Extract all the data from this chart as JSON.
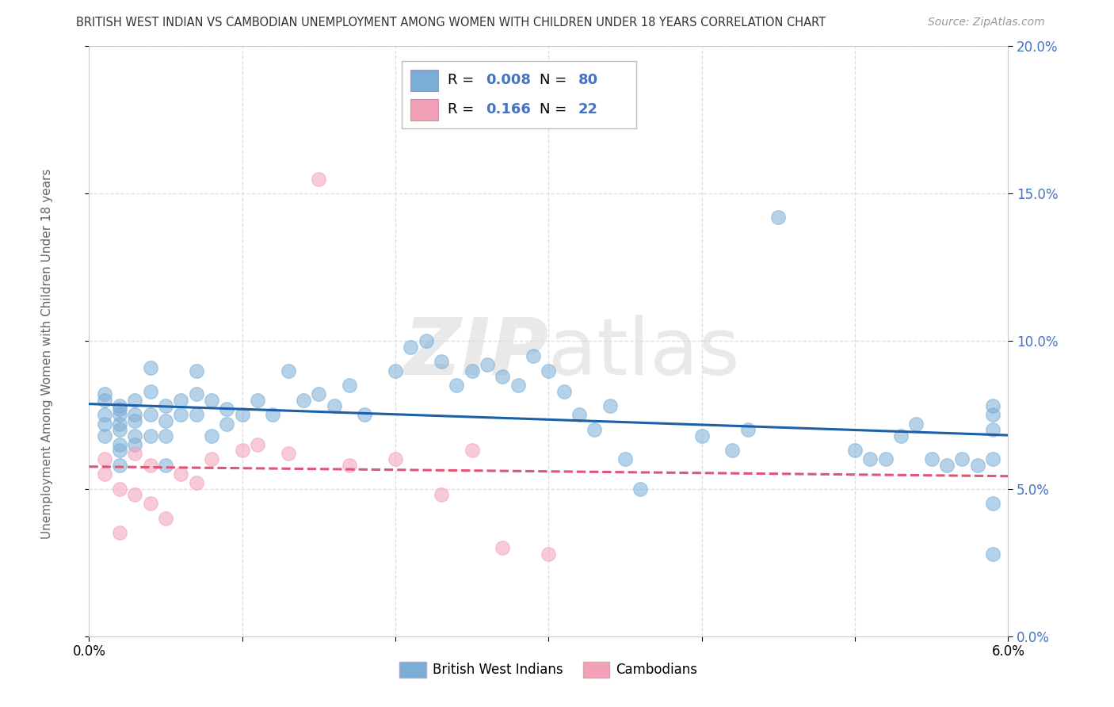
{
  "title": "BRITISH WEST INDIAN VS CAMBODIAN UNEMPLOYMENT AMONG WOMEN WITH CHILDREN UNDER 18 YEARS CORRELATION CHART",
  "source": "Source: ZipAtlas.com",
  "ylabel": "Unemployment Among Women with Children Under 18 years",
  "legend_label1": "British West Indians",
  "legend_label2": "Cambodians",
  "R1_val": "0.008",
  "N1_val": "80",
  "R2_val": "0.166",
  "N2_val": "22",
  "blue_color": "#7aaed6",
  "pink_color": "#f4a0b8",
  "trend_blue_color": "#1a5fa8",
  "trend_pink_color": "#e05575",
  "text_color_blue": "#4472c4",
  "label_color": "#666666",
  "grid_color": "#dddddd",
  "watermark_color": "#d8d8d8",
  "bg_color": "#ffffff",
  "xlim": [
    0.0,
    0.06
  ],
  "ylim": [
    0.0,
    0.2
  ],
  "xticks_labeled": [
    0.0,
    0.06
  ],
  "xticks_minor": [
    0.01,
    0.02,
    0.03,
    0.04,
    0.05
  ],
  "yticks": [
    0.0,
    0.05,
    0.1,
    0.15,
    0.2
  ],
  "blue_x": [
    0.001,
    0.001,
    0.001,
    0.001,
    0.001,
    0.002,
    0.002,
    0.002,
    0.002,
    0.002,
    0.002,
    0.002,
    0.002,
    0.003,
    0.003,
    0.003,
    0.003,
    0.003,
    0.004,
    0.004,
    0.004,
    0.004,
    0.005,
    0.005,
    0.005,
    0.005,
    0.006,
    0.006,
    0.007,
    0.007,
    0.007,
    0.008,
    0.008,
    0.009,
    0.009,
    0.01,
    0.011,
    0.012,
    0.013,
    0.014,
    0.015,
    0.016,
    0.017,
    0.018,
    0.02,
    0.021,
    0.022,
    0.023,
    0.024,
    0.025,
    0.026,
    0.027,
    0.028,
    0.029,
    0.03,
    0.031,
    0.032,
    0.033,
    0.034,
    0.035,
    0.036,
    0.04,
    0.042,
    0.043,
    0.045,
    0.05,
    0.051,
    0.052,
    0.053,
    0.054,
    0.055,
    0.056,
    0.057,
    0.058,
    0.059,
    0.059,
    0.059,
    0.059,
    0.059,
    0.059
  ],
  "blue_y": [
    0.075,
    0.082,
    0.072,
    0.068,
    0.08,
    0.078,
    0.072,
    0.065,
    0.07,
    0.063,
    0.077,
    0.058,
    0.075,
    0.08,
    0.073,
    0.075,
    0.068,
    0.065,
    0.083,
    0.091,
    0.075,
    0.068,
    0.078,
    0.073,
    0.068,
    0.058,
    0.08,
    0.075,
    0.082,
    0.09,
    0.075,
    0.08,
    0.068,
    0.077,
    0.072,
    0.075,
    0.08,
    0.075,
    0.09,
    0.08,
    0.082,
    0.078,
    0.085,
    0.075,
    0.09,
    0.098,
    0.1,
    0.093,
    0.085,
    0.09,
    0.092,
    0.088,
    0.085,
    0.095,
    0.09,
    0.083,
    0.075,
    0.07,
    0.078,
    0.06,
    0.05,
    0.068,
    0.063,
    0.07,
    0.142,
    0.063,
    0.06,
    0.06,
    0.068,
    0.072,
    0.06,
    0.058,
    0.06,
    0.058,
    0.07,
    0.075,
    0.078,
    0.06,
    0.045,
    0.028
  ],
  "pink_x": [
    0.001,
    0.001,
    0.002,
    0.002,
    0.003,
    0.003,
    0.004,
    0.004,
    0.005,
    0.006,
    0.007,
    0.008,
    0.01,
    0.011,
    0.013,
    0.015,
    0.017,
    0.02,
    0.023,
    0.025,
    0.027,
    0.03
  ],
  "pink_y": [
    0.06,
    0.055,
    0.05,
    0.035,
    0.062,
    0.048,
    0.058,
    0.045,
    0.04,
    0.055,
    0.052,
    0.06,
    0.063,
    0.065,
    0.062,
    0.155,
    0.058,
    0.06,
    0.048,
    0.063,
    0.03,
    0.028
  ]
}
